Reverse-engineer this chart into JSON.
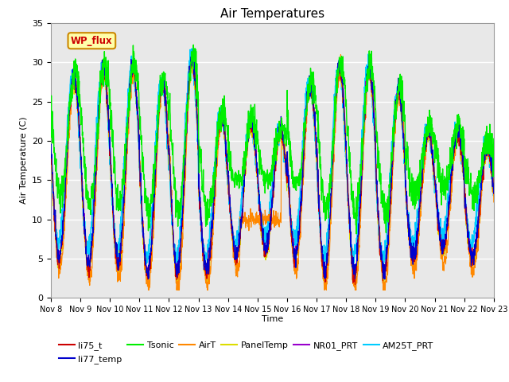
{
  "title": "Air Temperatures",
  "ylabel": "Air Temperature (C)",
  "xlabel": "Time",
  "ylim": [
    0,
    35
  ],
  "yticks": [
    0,
    5,
    10,
    15,
    20,
    25,
    30,
    35
  ],
  "xtick_labels": [
    "Nov 8",
    "Nov 9",
    "Nov 10",
    "Nov 11",
    "Nov 12",
    "Nov 13",
    "Nov 14",
    "Nov 15",
    "Nov 16",
    "Nov 17",
    "Nov 18",
    "Nov 19",
    "Nov 20",
    "Nov 21",
    "Nov 22",
    "Nov 23"
  ],
  "series_colors": {
    "li75_t": "#cc0000",
    "li77_temp": "#0000cc",
    "Tsonic": "#00ee00",
    "AirT": "#ff8800",
    "PanelTemp": "#dddd00",
    "NR01_PRT": "#9900cc",
    "AM25T_PRT": "#00ccff"
  },
  "plot_bg": "#e8e8e8",
  "fig_bg": "#ffffff",
  "annotation_text": "WP_flux",
  "annotation_bg": "#ffffaa",
  "annotation_border": "#cc8800",
  "annotation_color": "#cc0000"
}
